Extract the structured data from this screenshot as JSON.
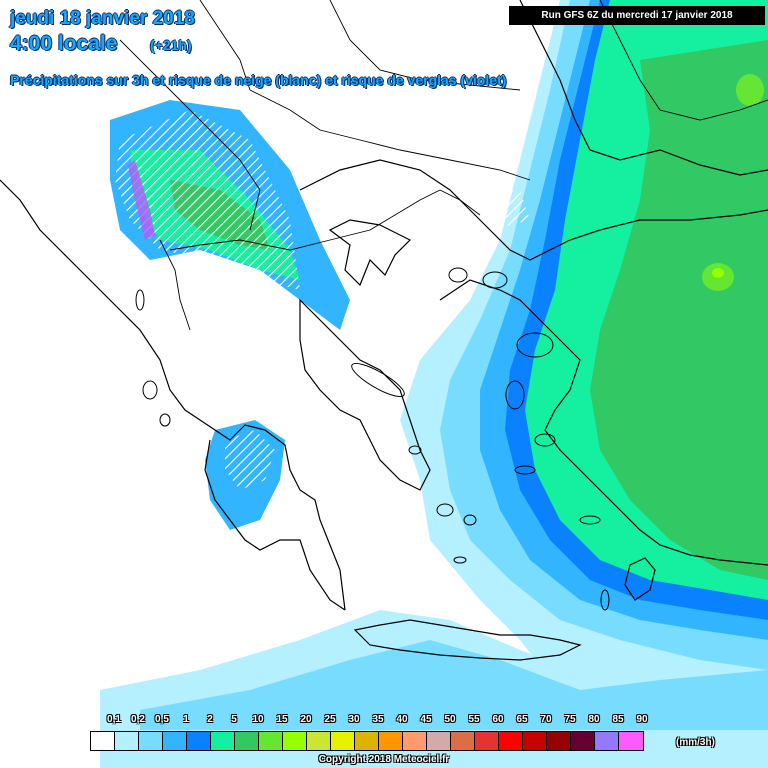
{
  "title": {
    "date": "jeudi 18 janvier 2018",
    "time": "4:00 locale",
    "offset": "(+21h)",
    "description": "Précipitations sur 3h et risque de neige (blanc) et risque de verglas (violet)"
  },
  "run_info": "Run GFS 6Z du mercredi 17 janvier 2018",
  "legend": {
    "labels": [
      "0,1",
      "0,2",
      "0,5",
      "1",
      "2",
      "5",
      "10",
      "15",
      "20",
      "25",
      "30",
      "35",
      "40",
      "45",
      "50",
      "55",
      "60",
      "65",
      "70",
      "75",
      "80",
      "85",
      "90"
    ],
    "colors": [
      "#ffffff",
      "#b4f0ff",
      "#78dcff",
      "#32b4ff",
      "#0a82ff",
      "#14f0a0",
      "#32c864",
      "#64e632",
      "#96ff00",
      "#c8e632",
      "#e6f000",
      "#dcb400",
      "#ff9600",
      "#ff9b6e",
      "#d2aaaa",
      "#dc6e46",
      "#e63232",
      "#ff0000",
      "#c80000",
      "#960000",
      "#640032",
      "#9678ff",
      "#ff5aff"
    ],
    "unit": "(mm/3h)"
  },
  "copyright": "Copyright 2018 Meteociel.fr"
}
